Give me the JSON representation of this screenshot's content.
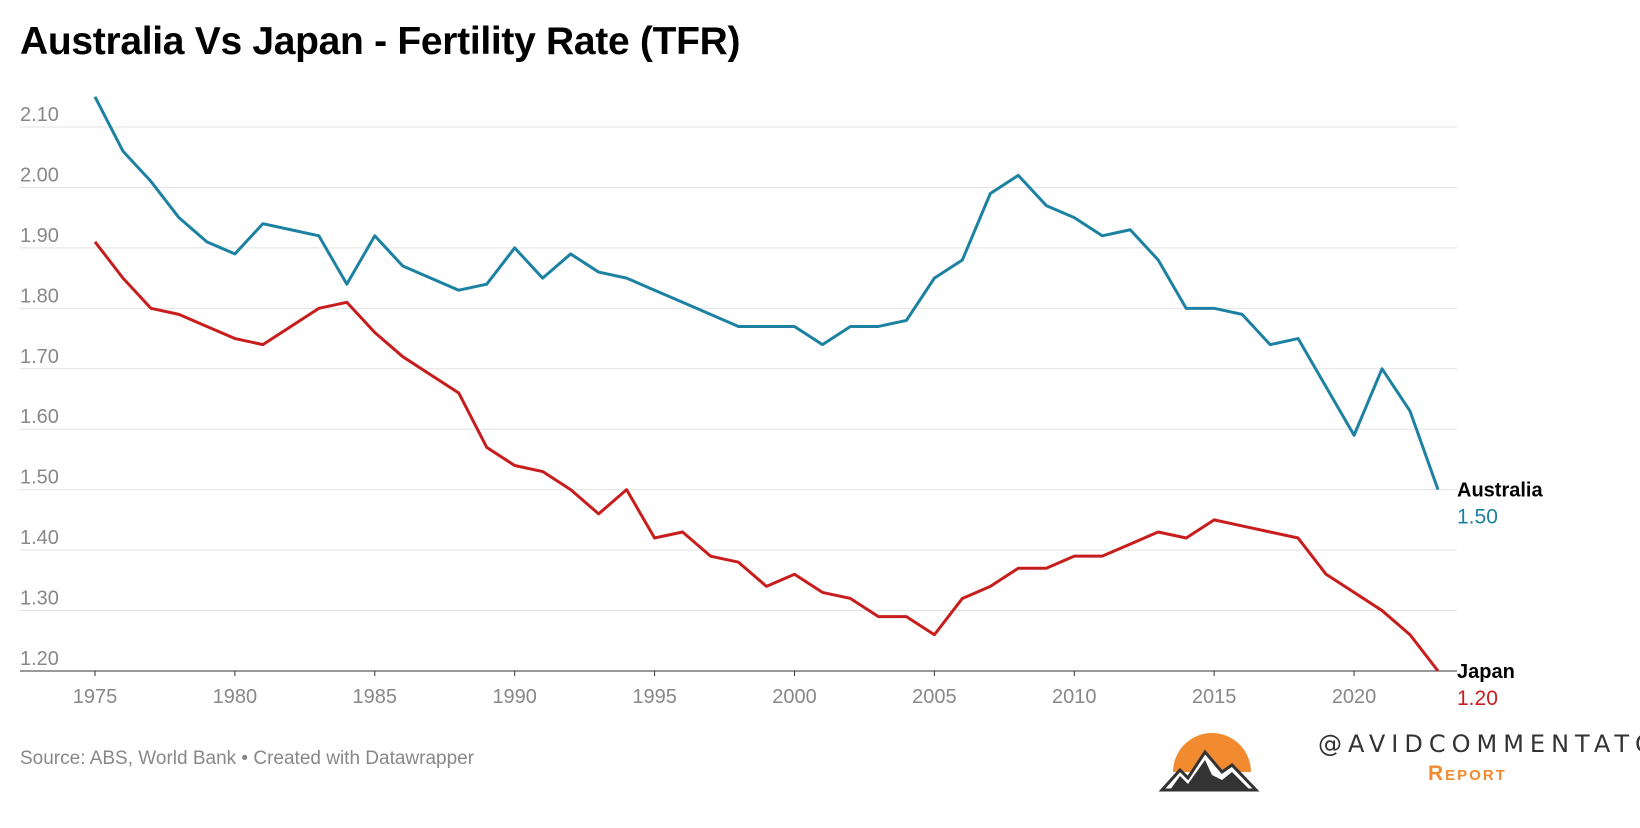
{
  "title": "Australia Vs Japan - Fertility Rate (TFR)",
  "source": "Source: ABS, World Bank • Created with Datawrapper",
  "logo": {
    "handle": "@AVIDCOMMENTATOR",
    "sub": "Report",
    "color": "#f28a30"
  },
  "chart_data": {
    "type": "line",
    "title": "Australia Vs Japan - Fertility Rate (TFR)",
    "xlabel": "",
    "ylabel": "",
    "xlim": [
      1975,
      2023
    ],
    "ylim": [
      1.2,
      2.15
    ],
    "grid": true,
    "x_ticks": [
      "1975",
      "1980",
      "1985",
      "1990",
      "1995",
      "2000",
      "2005",
      "2010",
      "2015",
      "2020"
    ],
    "y_ticks": [
      "1.20",
      "1.30",
      "1.40",
      "1.50",
      "1.60",
      "1.70",
      "1.80",
      "1.90",
      "2.00",
      "2.10"
    ],
    "x": [
      1975,
      1976,
      1977,
      1978,
      1979,
      1980,
      1981,
      1982,
      1983,
      1984,
      1985,
      1986,
      1987,
      1988,
      1989,
      1990,
      1991,
      1992,
      1993,
      1994,
      1995,
      1996,
      1997,
      1998,
      1999,
      2000,
      2001,
      2002,
      2003,
      2004,
      2005,
      2006,
      2007,
      2008,
      2009,
      2010,
      2011,
      2012,
      2013,
      2014,
      2015,
      2016,
      2017,
      2018,
      2019,
      2020,
      2021,
      2022,
      2023
    ],
    "series": [
      {
        "name": "Australia",
        "end_label": "1.50",
        "color": "#1d81a2",
        "values": [
          2.15,
          2.06,
          2.01,
          1.95,
          1.91,
          1.89,
          1.94,
          1.93,
          1.92,
          1.84,
          1.92,
          1.87,
          1.85,
          1.83,
          1.84,
          1.9,
          1.85,
          1.89,
          1.86,
          1.85,
          1.83,
          1.81,
          1.79,
          1.77,
          1.77,
          1.77,
          1.74,
          1.77,
          1.77,
          1.78,
          1.85,
          1.88,
          1.99,
          2.02,
          1.97,
          1.95,
          1.92,
          1.93,
          1.88,
          1.8,
          1.8,
          1.79,
          1.74,
          1.75,
          1.67,
          1.59,
          1.7,
          1.63,
          1.5
        ]
      },
      {
        "name": "Japan",
        "end_label": "1.20",
        "color": "#c71e1d",
        "values": [
          1.91,
          1.85,
          1.8,
          1.79,
          1.77,
          1.75,
          1.74,
          1.77,
          1.8,
          1.81,
          1.76,
          1.72,
          1.69,
          1.66,
          1.57,
          1.54,
          1.53,
          1.5,
          1.46,
          1.5,
          1.42,
          1.43,
          1.39,
          1.38,
          1.34,
          1.36,
          1.33,
          1.32,
          1.29,
          1.29,
          1.26,
          1.32,
          1.34,
          1.37,
          1.37,
          1.39,
          1.39,
          1.41,
          1.43,
          1.42,
          1.45,
          1.44,
          1.43,
          1.42,
          1.36,
          1.33,
          1.3,
          1.26,
          1.2
        ]
      }
    ]
  }
}
